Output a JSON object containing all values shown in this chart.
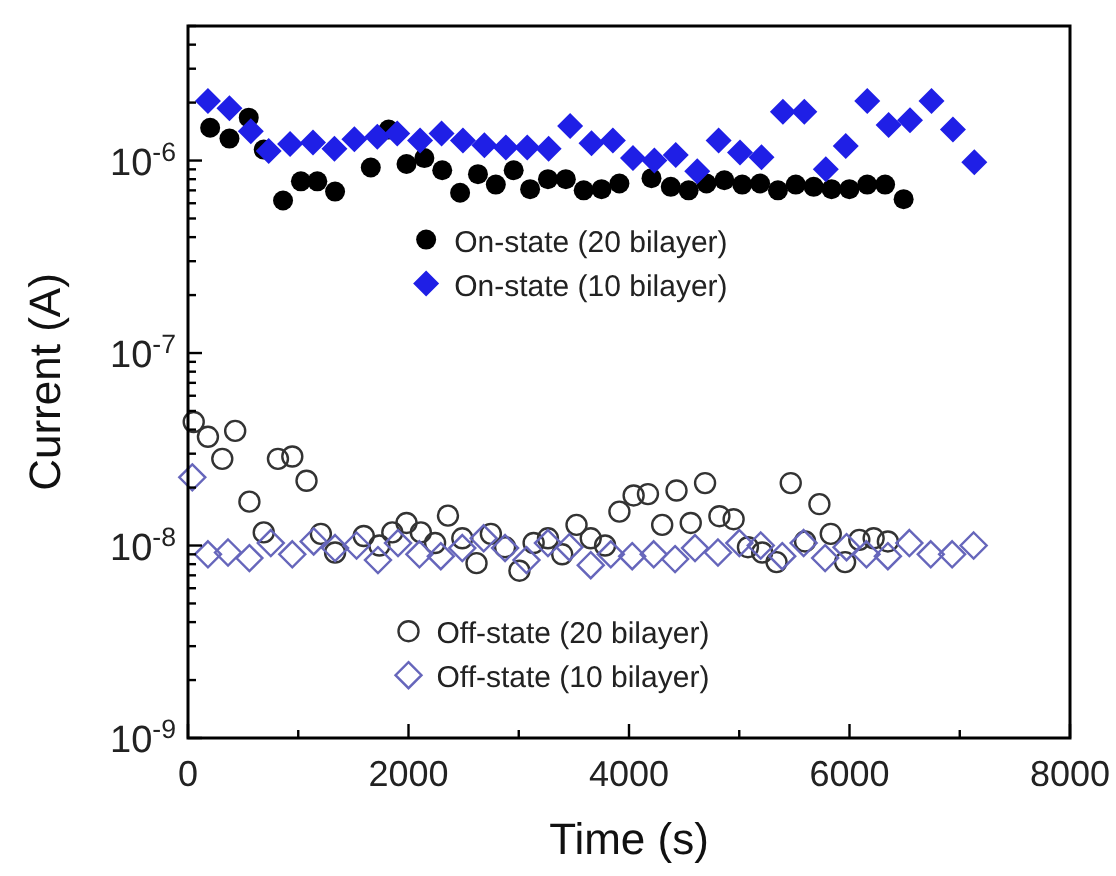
{
  "chart_data": {
    "type": "scatter",
    "xlabel": "Time (s)",
    "ylabel": "Current (A)",
    "log": "y",
    "legend": "center",
    "grid": false,
    "xlim": [
      0,
      8000
    ],
    "xticks": [
      0,
      {
        "value": 1000,
        "label": null
      },
      2000,
      {
        "value": 3000,
        "label": null
      },
      4000,
      {
        "value": 5000,
        "label": null
      },
      6000,
      {
        "value": 7000,
        "label": null
      },
      8000
    ],
    "ylim": [
      1e-09,
      5e-06
    ],
    "yticks": [
      {
        "value": 1e-09,
        "label": "10$^{-9}$"
      },
      {
        "value": 2e-09,
        "label": null
      },
      {
        "value": 3e-09,
        "label": null
      },
      {
        "value": 4e-09,
        "label": null
      },
      {
        "value": 5e-09,
        "label": null
      },
      {
        "value": 6e-09,
        "label": null
      },
      {
        "value": 7e-09,
        "label": null
      },
      {
        "value": 8e-09,
        "label": null
      },
      {
        "value": 9e-09,
        "label": null
      },
      {
        "value": 1e-08,
        "label": "10$^{-8}$"
      },
      {
        "value": 2e-08,
        "label": null
      },
      {
        "value": 3e-08,
        "label": null
      },
      {
        "value": 4e-08,
        "label": null
      },
      {
        "value": 5e-08,
        "label": null
      },
      {
        "value": 6e-08,
        "label": null
      },
      {
        "value": 7e-08,
        "label": null
      },
      {
        "value": 8e-08,
        "label": null
      },
      {
        "value": 9e-08,
        "label": null
      },
      {
        "value": 1e-07,
        "label": "10$^{-7}$"
      },
      {
        "value": 2e-07,
        "label": null
      },
      {
        "value": 3e-07,
        "label": null
      },
      {
        "value": 4e-07,
        "label": null
      },
      {
        "value": 5e-07,
        "label": null
      },
      {
        "value": 6e-07,
        "label": null
      },
      {
        "value": 7e-07,
        "label": null
      },
      {
        "value": 8e-07,
        "label": null
      },
      {
        "value": 9e-07,
        "label": null
      },
      {
        "value": 1e-06,
        "label": "10$^{-6}$"
      },
      {
        "value": 2e-06,
        "label": null
      },
      {
        "value": 3e-06,
        "label": null
      },
      {
        "value": 4e-06,
        "label": null
      },
      {
        "value": 5e-06,
        "label": null
      }
    ],
    "series": [
      {
        "name": "On-state (20 bilayer)",
        "color": "#000000",
        "marker": "circle",
        "x": [
          201,
          376,
          551,
          687,
          862,
          1024,
          1173,
          1334,
          1658,
          1820,
          1982,
          2144,
          2306,
          2468,
          2630,
          2792,
          2954,
          3103,
          3265,
          3427,
          3589,
          3751,
          3913,
          4204,
          4379,
          4541,
          4703,
          4865,
          5027,
          5189,
          5351,
          5513,
          5675,
          5837,
          5999,
          6161,
          6323,
          6491
        ],
        "values": [
          1.48e-06,
          1.3e-06,
          1.67e-06,
          1.14e-06,
          6.2e-07,
          7.8e-07,
          7.8e-07,
          6.9e-07,
          9.2e-07,
          1.45e-06,
          9.6e-07,
          1.03e-06,
          8.9e-07,
          6.8e-07,
          8.5e-07,
          7.5e-07,
          8.9e-07,
          7.1e-07,
          8e-07,
          8e-07,
          7e-07,
          7.1e-07,
          7.6e-07,
          8.1e-07,
          7.3e-07,
          7e-07,
          7.6e-07,
          7.9e-07,
          7.5e-07,
          7.6e-07,
          7e-07,
          7.5e-07,
          7.3e-07,
          7.1e-07,
          7.1e-07,
          7.5e-07,
          7.5e-07,
          6.3e-07
        ]
      },
      {
        "name": "On-state (10 bilayer)",
        "color": "#1f1fe6",
        "marker": "diamond",
        "x": [
          181,
          376,
          570,
          732,
          926,
          1134,
          1328,
          1509,
          1717,
          1898,
          2105,
          2300,
          2494,
          2688,
          2883,
          3077,
          3271,
          3466,
          3660,
          3854,
          4036,
          4230,
          4424,
          4619,
          4813,
          5007,
          5202,
          5396,
          5590,
          5785,
          5966,
          6161,
          6355,
          6549,
          6744,
          6938,
          7132
        ],
        "values": [
          2.04e-06,
          1.87e-06,
          1.42e-06,
          1.12e-06,
          1.22e-06,
          1.24e-06,
          1.15e-06,
          1.29e-06,
          1.33e-06,
          1.38e-06,
          1.27e-06,
          1.38e-06,
          1.27e-06,
          1.2e-06,
          1.17e-06,
          1.17e-06,
          1.15e-06,
          1.51e-06,
          1.23e-06,
          1.27e-06,
          1.03e-06,
          1e-06,
          1.07e-06,
          8.8e-07,
          1.27e-06,
          1.1e-06,
          1.04e-06,
          1.79e-06,
          1.79e-06,
          9e-07,
          1.19e-06,
          2.04e-06,
          1.53e-06,
          1.62e-06,
          2.04e-06,
          1.45e-06,
          9.8e-07
        ]
      },
      {
        "name": "Off-state (20 bilayer)",
        "color": "#333333",
        "marker": "circle-open",
        "x": [
          52,
          181,
          311,
          428,
          557,
          687,
          816,
          946,
          1075,
          1205,
          1334,
          1594,
          1736,
          1853,
          1982,
          2112,
          2241,
          2358,
          2488,
          2617,
          2747,
          2876,
          3006,
          3135,
          3265,
          3394,
          3524,
          3653,
          3783,
          3913,
          4042,
          4172,
          4301,
          4431,
          4560,
          4690,
          4820,
          4949,
          5079,
          5208,
          5338,
          5467,
          5597,
          5727,
          5830,
          5960,
          6089,
          6219,
          6348
        ],
        "values": [
          4.38e-08,
          3.67e-08,
          2.82e-08,
          3.94e-08,
          1.69e-08,
          1.17e-08,
          2.82e-08,
          2.9e-08,
          2.17e-08,
          1.15e-08,
          9.2e-09,
          1.12e-08,
          1e-08,
          1.17e-08,
          1.31e-08,
          1.17e-08,
          1.03e-08,
          1.43e-08,
          1.09e-08,
          8.1e-09,
          1.15e-08,
          9.8e-09,
          7.4e-09,
          1.03e-08,
          1.09e-08,
          9e-09,
          1.28e-08,
          1.09e-08,
          1e-08,
          1.5e-08,
          1.82e-08,
          1.85e-08,
          1.28e-08,
          1.93e-08,
          1.31e-08,
          2.11e-08,
          1.42e-08,
          1.37e-08,
          9.8e-09,
          9.2e-09,
          8.2e-09,
          2.11e-08,
          1.05e-08,
          1.64e-08,
          1.15e-08,
          8.2e-09,
          1.07e-08,
          1.09e-08,
          1.05e-08
        ]
      },
      {
        "name": "Off-state (10 bilayer)",
        "color": "#6666bb",
        "marker": "diamond-open",
        "x": [
          39,
          181,
          363,
          557,
          751,
          946,
          1140,
          1334,
          1529,
          1723,
          1905,
          2099,
          2293,
          2488,
          2682,
          2876,
          3070,
          3265,
          3459,
          3653,
          3835,
          4029,
          4224,
          4418,
          4599,
          4807,
          5001,
          5195,
          5390,
          5584,
          5779,
          5973,
          6154,
          6348,
          6543,
          6737,
          6931,
          7126
        ],
        "values": [
          2.26e-08,
          9e-09,
          9.2e-09,
          8.6e-09,
          1.03e-08,
          9e-09,
          1.05e-08,
          9.7e-09,
          1e-08,
          8.4e-09,
          1.03e-08,
          9e-09,
          8.8e-09,
          9.7e-09,
          1.09e-08,
          9.7e-09,
          8.4e-09,
          1.03e-08,
          9.8e-09,
          7.9e-09,
          9e-09,
          8.8e-09,
          9e-09,
          8.5e-09,
          9.7e-09,
          9.2e-09,
          1.03e-08,
          1e-08,
          8.8e-09,
          1.03e-08,
          8.6e-09,
          9.8e-09,
          9e-09,
          8.8e-09,
          1.03e-08,
          9e-09,
          9e-09,
          1e-08
        ]
      }
    ]
  }
}
